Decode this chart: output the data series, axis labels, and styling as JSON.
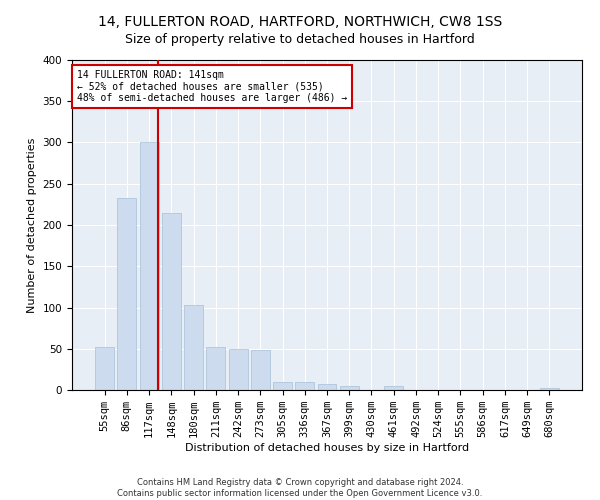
{
  "title": "14, FULLERTON ROAD, HARTFORD, NORTHWICH, CW8 1SS",
  "subtitle": "Size of property relative to detached houses in Hartford",
  "xlabel": "Distribution of detached houses by size in Hartford",
  "ylabel": "Number of detached properties",
  "footer_line1": "Contains HM Land Registry data © Crown copyright and database right 2024.",
  "footer_line2": "Contains public sector information licensed under the Open Government Licence v3.0.",
  "bin_labels": [
    "55sqm",
    "86sqm",
    "117sqm",
    "148sqm",
    "180sqm",
    "211sqm",
    "242sqm",
    "273sqm",
    "305sqm",
    "336sqm",
    "367sqm",
    "399sqm",
    "430sqm",
    "461sqm",
    "492sqm",
    "524sqm",
    "555sqm",
    "586sqm",
    "617sqm",
    "649sqm",
    "680sqm"
  ],
  "bar_values": [
    52,
    233,
    300,
    215,
    103,
    52,
    50,
    48,
    10,
    10,
    7,
    5,
    0,
    5,
    0,
    0,
    0,
    0,
    0,
    0,
    3
  ],
  "bar_color": "#ccdcee",
  "bar_edgecolor": "#a8c0d8",
  "vline_x_index": 2.42,
  "vline_color": "#cc0000",
  "annotation_text": "14 FULLERTON ROAD: 141sqm\n← 52% of detached houses are smaller (535)\n48% of semi-detached houses are larger (486) →",
  "annotation_box_edgecolor": "#cc0000",
  "annotation_box_facecolor": "#ffffff",
  "ylim": [
    0,
    400
  ],
  "yticks": [
    0,
    50,
    100,
    150,
    200,
    250,
    300,
    350,
    400
  ],
  "background_color": "#e8eef5",
  "title_fontsize": 10,
  "axis_fontsize": 8,
  "tick_fontsize": 7.5,
  "annotation_fontsize": 7,
  "footer_fontsize": 6
}
